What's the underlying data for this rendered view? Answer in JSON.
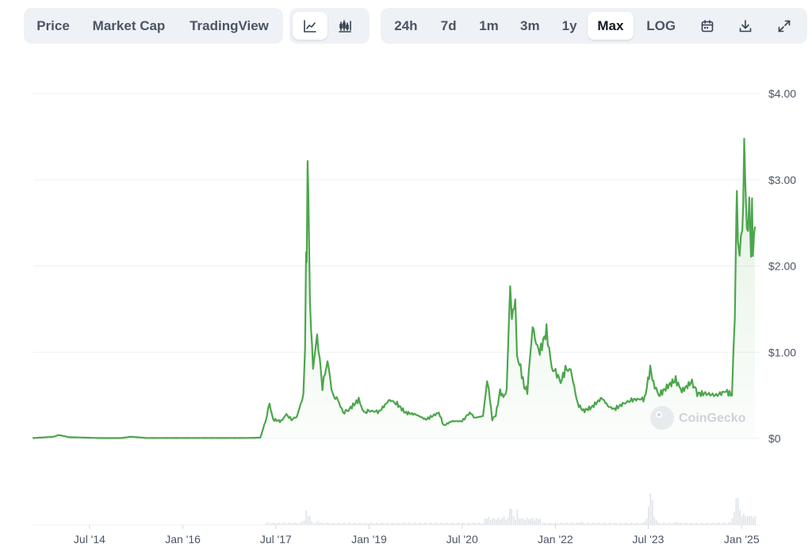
{
  "toolbar": {
    "data_type_tabs": [
      {
        "label": "Price",
        "active": true
      },
      {
        "label": "Market Cap",
        "active": false
      },
      {
        "label": "TradingView",
        "active": false
      }
    ],
    "chart_style_icons": [
      "line-chart-icon",
      "candlestick-chart-icon"
    ],
    "ranges": [
      {
        "label": "24h",
        "active": false
      },
      {
        "label": "7d",
        "active": false
      },
      {
        "label": "1m",
        "active": false
      },
      {
        "label": "3m",
        "active": false
      },
      {
        "label": "1y",
        "active": false
      },
      {
        "label": "Max",
        "active": true
      },
      {
        "label": "LOG",
        "active": false
      }
    ],
    "tool_icons": [
      "calendar-icon",
      "download-icon",
      "expand-icon"
    ]
  },
  "watermark": "CoinGecko",
  "colors": {
    "line": "#4ca64c",
    "fill": "#e9f6e9",
    "grid": "#eef0f3",
    "volume": "#dfe3e8"
  },
  "chart_data": {
    "type": "line",
    "series_type": "price",
    "y_ticks": [
      "$4.00",
      "$3.00",
      "$2.00",
      "$1.00",
      "$0"
    ],
    "ylim": [
      0,
      4
    ],
    "x_ticks": [
      "Jul '14",
      "Jan '16",
      "Jul '17",
      "Jan '19",
      "Jul '20",
      "Jan '22",
      "Jul '23",
      "Jan '25"
    ],
    "x_tick_dates": [
      "2014-07-01",
      "2016-01-01",
      "2017-07-01",
      "2019-01-01",
      "2020-07-01",
      "2022-01-01",
      "2023-07-01",
      "2025-01-01"
    ],
    "points": [
      [
        "2013-08-04",
        0.005
      ],
      [
        "2013-12-01",
        0.02
      ],
      [
        "2014-01-01",
        0.04
      ],
      [
        "2014-03-01",
        0.015
      ],
      [
        "2014-09-01",
        0.005
      ],
      [
        "2015-01-01",
        0.005
      ],
      [
        "2015-03-01",
        0.02
      ],
      [
        "2015-06-01",
        0.006
      ],
      [
        "2016-06-01",
        0.006
      ],
      [
        "2017-01-01",
        0.006
      ],
      [
        "2017-04-01",
        0.01
      ],
      [
        "2017-05-01",
        0.2
      ],
      [
        "2017-05-25",
        0.4
      ],
      [
        "2017-06-15",
        0.22
      ],
      [
        "2017-08-01",
        0.2
      ],
      [
        "2017-09-01",
        0.28
      ],
      [
        "2017-10-01",
        0.22
      ],
      [
        "2017-11-01",
        0.25
      ],
      [
        "2017-12-10",
        0.5
      ],
      [
        "2017-12-20",
        1.0
      ],
      [
        "2017-12-26",
        2.3
      ],
      [
        "2017-12-30",
        2.0
      ],
      [
        "2018-01-04",
        3.4
      ],
      [
        "2018-01-08",
        2.8
      ],
      [
        "2018-01-18",
        1.6
      ],
      [
        "2018-02-05",
        0.8
      ],
      [
        "2018-03-01",
        1.2
      ],
      [
        "2018-04-01",
        0.6
      ],
      [
        "2018-05-01",
        0.9
      ],
      [
        "2018-06-01",
        0.5
      ],
      [
        "2018-07-01",
        0.45
      ],
      [
        "2018-08-01",
        0.3
      ],
      [
        "2018-09-01",
        0.33
      ],
      [
        "2018-11-01",
        0.45
      ],
      [
        "2018-12-01",
        0.3
      ],
      [
        "2019-01-01",
        0.32
      ],
      [
        "2019-03-01",
        0.31
      ],
      [
        "2019-05-01",
        0.45
      ],
      [
        "2019-06-15",
        0.4
      ],
      [
        "2019-08-01",
        0.3
      ],
      [
        "2019-10-01",
        0.28
      ],
      [
        "2019-12-01",
        0.22
      ],
      [
        "2020-02-15",
        0.3
      ],
      [
        "2020-03-15",
        0.15
      ],
      [
        "2020-05-01",
        0.2
      ],
      [
        "2020-07-01",
        0.2
      ],
      [
        "2020-08-15",
        0.3
      ],
      [
        "2020-09-15",
        0.24
      ],
      [
        "2020-11-01",
        0.26
      ],
      [
        "2020-11-25",
        0.65
      ],
      [
        "2020-12-05",
        0.58
      ],
      [
        "2020-12-25",
        0.22
      ],
      [
        "2021-01-15",
        0.27
      ],
      [
        "2021-02-10",
        0.55
      ],
      [
        "2021-03-01",
        0.48
      ],
      [
        "2021-03-20",
        0.55
      ],
      [
        "2021-04-10",
        1.8
      ],
      [
        "2021-04-20",
        1.4
      ],
      [
        "2021-05-10",
        1.6
      ],
      [
        "2021-05-20",
        0.95
      ],
      [
        "2021-06-10",
        0.82
      ],
      [
        "2021-07-01",
        0.6
      ],
      [
        "2021-07-20",
        0.55
      ],
      [
        "2021-08-20",
        1.3
      ],
      [
        "2021-09-10",
        1.1
      ],
      [
        "2021-10-01",
        1.0
      ],
      [
        "2021-11-10",
        1.25
      ],
      [
        "2021-12-10",
        0.82
      ],
      [
        "2022-01-10",
        0.75
      ],
      [
        "2022-02-01",
        0.65
      ],
      [
        "2022-03-01",
        0.8
      ],
      [
        "2022-04-01",
        0.8
      ],
      [
        "2022-05-12",
        0.4
      ],
      [
        "2022-06-15",
        0.32
      ],
      [
        "2022-08-01",
        0.36
      ],
      [
        "2022-10-01",
        0.47
      ],
      [
        "2022-11-10",
        0.37
      ],
      [
        "2022-12-15",
        0.34
      ],
      [
        "2023-02-01",
        0.4
      ],
      [
        "2023-04-01",
        0.45
      ],
      [
        "2023-06-10",
        0.46
      ],
      [
        "2023-07-13",
        0.81
      ],
      [
        "2023-08-01",
        0.65
      ],
      [
        "2023-09-01",
        0.5
      ],
      [
        "2023-11-01",
        0.62
      ],
      [
        "2023-12-10",
        0.68
      ],
      [
        "2024-01-15",
        0.55
      ],
      [
        "2024-03-15",
        0.66
      ],
      [
        "2024-04-15",
        0.52
      ],
      [
        "2024-06-01",
        0.52
      ],
      [
        "2024-08-05",
        0.5
      ],
      [
        "2024-10-01",
        0.55
      ],
      [
        "2024-11-05",
        0.5
      ],
      [
        "2024-11-13",
        1.0
      ],
      [
        "2024-11-22",
        1.4
      ],
      [
        "2024-12-01",
        2.6
      ],
      [
        "2024-12-04",
        2.7
      ],
      [
        "2024-12-10",
        2.3
      ],
      [
        "2024-12-20",
        2.2
      ],
      [
        "2025-01-05",
        2.4
      ],
      [
        "2025-01-16",
        3.28
      ],
      [
        "2025-01-22",
        3.0
      ],
      [
        "2025-02-01",
        2.5
      ],
      [
        "2025-02-08",
        2.4
      ],
      [
        "2025-02-15",
        2.7
      ],
      [
        "2025-02-25",
        2.1
      ],
      [
        "2025-03-03",
        2.9
      ],
      [
        "2025-03-08",
        2.2
      ],
      [
        "2025-03-15",
        2.35
      ],
      [
        "2025-03-20",
        2.45
      ]
    ],
    "volume_bursts": [
      [
        "2017-12-25",
        0.35
      ],
      [
        "2018-01-06",
        0.3
      ],
      [
        "2018-03-01",
        0.1
      ],
      [
        "2020-11-25",
        0.25
      ],
      [
        "2021-03-01",
        0.2
      ],
      [
        "2021-04-10",
        0.55
      ],
      [
        "2021-05-20",
        0.35
      ],
      [
        "2021-09-01",
        0.15
      ],
      [
        "2022-06-01",
        0.1
      ],
      [
        "2023-07-13",
        0.95
      ],
      [
        "2023-12-10",
        0.1
      ],
      [
        "2024-11-20",
        0.45
      ],
      [
        "2024-12-03",
        0.9
      ],
      [
        "2025-01-16",
        0.35
      ],
      [
        "2025-03-03",
        0.3
      ]
    ]
  }
}
